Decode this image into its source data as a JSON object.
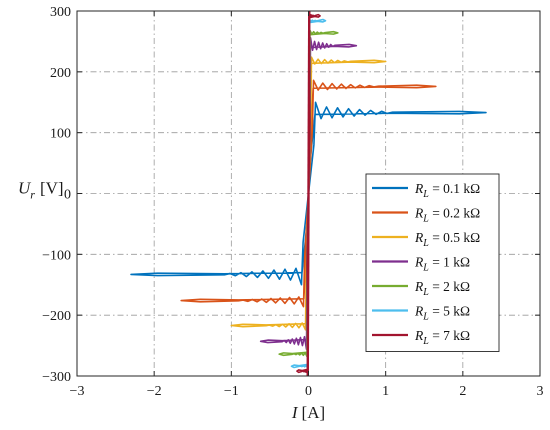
{
  "chart_data": {
    "type": "line",
    "xlabel_symbol": "I",
    "xlabel_unit": "[A]",
    "ylabel_symbol": "U",
    "ylabel_subscript": "r",
    "ylabel_unit": "[V]",
    "xlim": [
      -3,
      3
    ],
    "ylim": [
      -300,
      300
    ],
    "xticks": [
      -3,
      -2,
      -1,
      0,
      1,
      2,
      3
    ],
    "yticks": [
      -300,
      -200,
      -100,
      0,
      100,
      200,
      300
    ],
    "xtick_labels": [
      "−3",
      "−2",
      "−1",
      "0",
      "1",
      "2",
      "3"
    ],
    "ytick_labels": [
      "−300",
      "−200",
      "−100",
      "0",
      "100",
      "200",
      "300"
    ],
    "grid": true,
    "legend_position": "lower-right",
    "series": [
      {
        "name": "R_L = 0.1 kΩ",
        "legend": {
          "sym": "R",
          "sub": "L",
          "text": " = 0.1 kΩ"
        },
        "color": "#0072BD",
        "x_end": 2.3,
        "y_level": 133,
        "y_peak": 150,
        "osc": 7,
        "x_bend": 0.07
      },
      {
        "name": "R_L = 0.2 kΩ",
        "legend": {
          "sym": "R",
          "sub": "L",
          "text": " = 0.2 kΩ"
        },
        "color": "#D95319",
        "x_end": 1.65,
        "y_level": 176,
        "y_peak": 186,
        "osc": 7,
        "x_bend": 0.05
      },
      {
        "name": "R_L = 0.5 kΩ",
        "legend": {
          "sym": "R",
          "sub": "L",
          "text": " = 0.5 kΩ"
        },
        "color": "#EDB120",
        "x_end": 1.0,
        "y_level": 217,
        "y_peak": 224,
        "osc": 6,
        "x_bend": 0.03
      },
      {
        "name": "R_L = 1 kΩ",
        "legend": {
          "sym": "R",
          "sub": "L",
          "text": " = 1 kΩ"
        },
        "color": "#7E2F8E",
        "x_end": 0.62,
        "y_level": 243,
        "y_peak": 256,
        "osc": 6,
        "x_bend": 0.02
      },
      {
        "name": "R_L = 2 kΩ",
        "legend": {
          "sym": "R",
          "sub": "L",
          "text": " = 2 kΩ"
        },
        "color": "#77AC30",
        "x_end": 0.38,
        "y_level": 264,
        "y_peak": 268,
        "osc": 4,
        "x_bend": 0.015
      },
      {
        "name": "R_L = 5 kΩ",
        "legend": {
          "sym": "R",
          "sub": "L",
          "text": " = 5 kΩ"
        },
        "color": "#4DBEEE",
        "x_end": 0.22,
        "y_level": 284,
        "y_peak": 286,
        "osc": 3,
        "x_bend": 0.01
      },
      {
        "name": "R_L = 7 kΩ",
        "legend": {
          "sym": "R",
          "sub": "L",
          "text": " = 7 kΩ"
        },
        "color": "#A2142F",
        "x_end": 0.15,
        "y_level": 292,
        "y_peak": 296,
        "osc": 3,
        "x_bend": 0.005
      }
    ]
  }
}
